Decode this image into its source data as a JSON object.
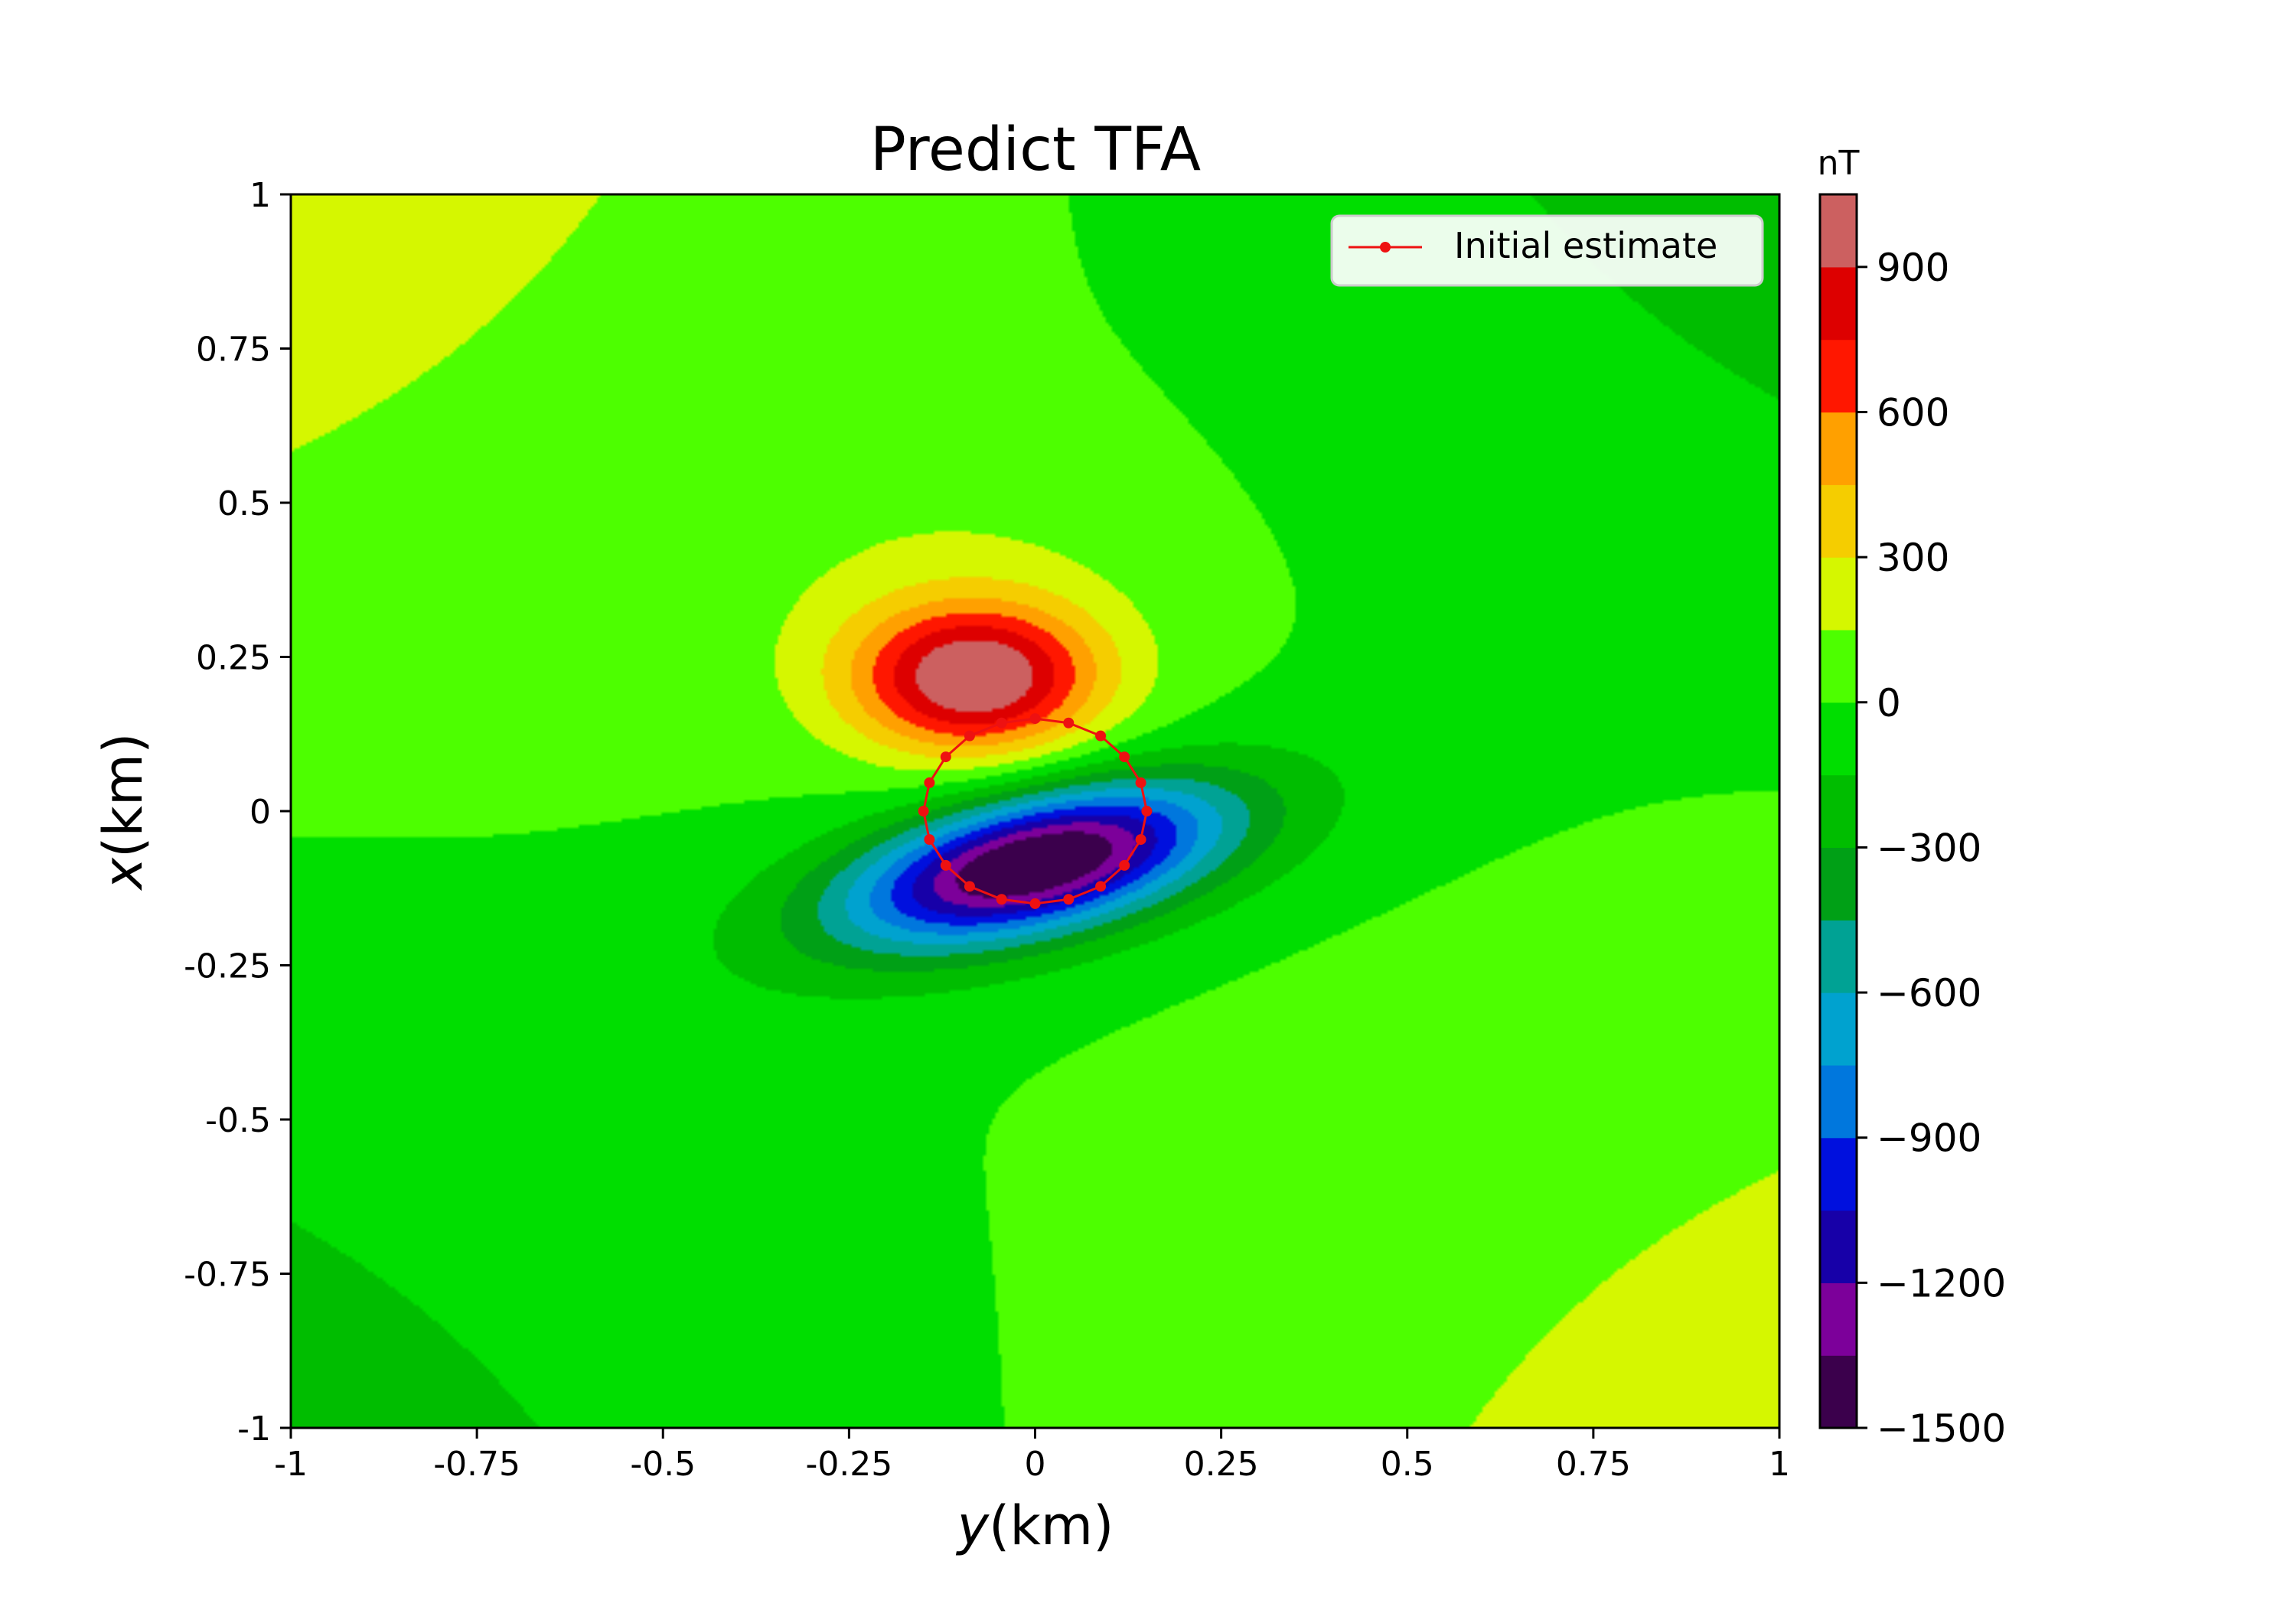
{
  "chart_data": {
    "type": "heatmap",
    "title": "Predict TFA",
    "xlabel": "y(km)",
    "ylabel": "x(km)",
    "xlim": [
      -1,
      1
    ],
    "ylim": [
      -1,
      1
    ],
    "x_ticks": [
      -1,
      -0.75,
      -0.5,
      -0.25,
      0,
      0.25,
      0.5,
      0.75,
      1
    ],
    "y_ticks": [
      -1,
      -0.75,
      -0.5,
      -0.25,
      0,
      0.25,
      0.5,
      0.75,
      1
    ],
    "x_tick_labels": [
      "-1",
      "-0.75",
      "-0.5",
      "-0.25",
      "0",
      "0.25",
      "0.5",
      "0.75",
      "1"
    ],
    "y_tick_labels": [
      "-1",
      "-0.75",
      "-0.5",
      "-0.25",
      "0",
      "0.25",
      "0.5",
      "0.75",
      "1"
    ],
    "colorbar": {
      "label": "nT",
      "min": -1500,
      "max": 1050,
      "tick_values": [
        -1500,
        -1200,
        -900,
        -600,
        -300,
        0,
        300,
        600,
        900
      ],
      "tick_labels": [
        "−1500",
        "−1200",
        "−900",
        "−600",
        "−300",
        "0",
        "300",
        "600",
        "900"
      ],
      "levels": [
        -1500,
        -1350,
        -1200,
        -1050,
        -900,
        -750,
        -600,
        -450,
        -300,
        -150,
        0,
        150,
        300,
        450,
        600,
        750,
        900,
        1050
      ],
      "colors": [
        "#3b004c",
        "#7c009a",
        "#1700a8",
        "#0010de",
        "#0077dd",
        "#00a2cf",
        "#00a294",
        "#00a016",
        "#00bd00",
        "#00de00",
        "#4dff00",
        "#d5f700",
        "#f5cd00",
        "#ffa000",
        "#ff1700",
        "#dd0000",
        "#cc6060"
      ]
    },
    "legend": {
      "position": "top-right",
      "entries": [
        {
          "label": "Initial estimate",
          "color": "#ee1111",
          "marker": "circle"
        }
      ]
    },
    "initial_estimate": {
      "y": [
        0.0,
        0.045,
        0.088,
        0.12,
        0.142,
        0.15,
        0.142,
        0.12,
        0.088,
        0.045,
        0.0,
        -0.045,
        -0.088,
        -0.12,
        -0.142,
        -0.15,
        -0.142,
        -0.12,
        -0.088,
        -0.045,
        0.0
      ],
      "x": [
        -0.15,
        -0.143,
        -0.122,
        -0.088,
        -0.046,
        0.0,
        0.046,
        0.088,
        0.122,
        0.143,
        0.15,
        0.143,
        0.122,
        0.088,
        0.046,
        0.0,
        -0.046,
        -0.088,
        -0.122,
        -0.143,
        -0.15
      ]
    },
    "field_model": "dipole anomaly: positive lobe near (y -0.08, x 0.22) peaking about 1000 nT, negative lobe near (y 0.0, x -0.08) reaching about -1450 nT"
  }
}
